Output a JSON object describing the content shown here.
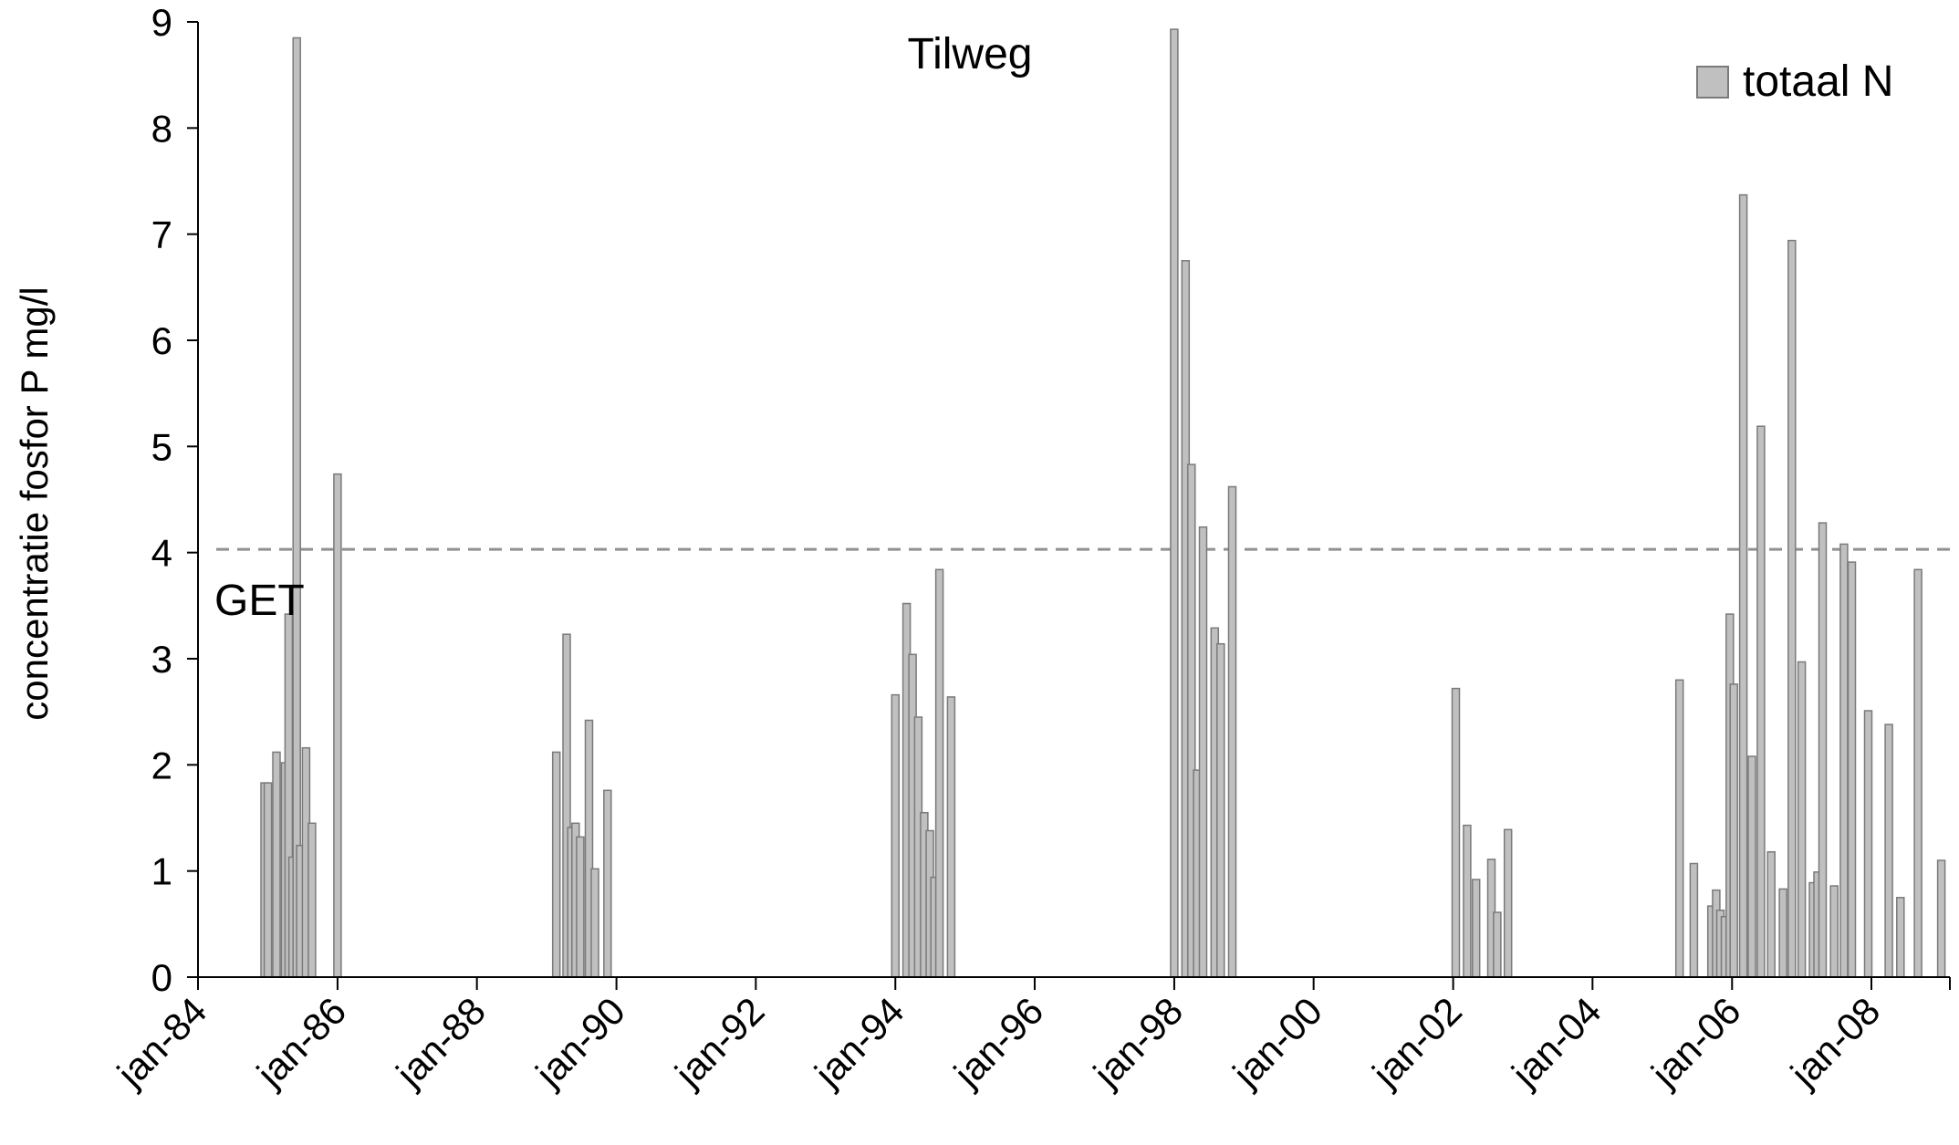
{
  "chart_data": {
    "type": "bar",
    "title": "Tilweg",
    "ylabel": "concentratie fosfor P mg/l",
    "xlabel": "",
    "ylim": [
      0,
      9
    ],
    "yticks": [
      "0",
      "1",
      "2",
      "3",
      "4",
      "5",
      "6",
      "7",
      "8",
      "9"
    ],
    "xlim": [
      "1984-01-01",
      "2009-02-15"
    ],
    "xticks": [
      {
        "date": "1984-01-01",
        "label": "jan-84"
      },
      {
        "date": "1986-01-01",
        "label": "jan-86"
      },
      {
        "date": "1988-01-01",
        "label": "jan-88"
      },
      {
        "date": "1990-01-01",
        "label": "jan-90"
      },
      {
        "date": "1992-01-01",
        "label": "jan-92"
      },
      {
        "date": "1994-01-01",
        "label": "jan-94"
      },
      {
        "date": "1996-01-01",
        "label": "jan-96"
      },
      {
        "date": "1998-01-01",
        "label": "jan-98"
      },
      {
        "date": "2000-01-01",
        "label": "jan-00"
      },
      {
        "date": "2002-01-01",
        "label": "jan-02"
      },
      {
        "date": "2004-01-01",
        "label": "jan-04"
      },
      {
        "date": "2006-01-01",
        "label": "jan-06"
      },
      {
        "date": "2008-01-01",
        "label": "jan-08"
      }
    ],
    "legend": {
      "label": "totaal N",
      "placement": "top-right"
    },
    "reference_line": {
      "label": "GET",
      "value": 4.03
    },
    "colors": {
      "bar_fill": "#c0c0c0",
      "bar_stroke": "#7a7a7a",
      "reference": "#909090",
      "reference_label": "#c0c0c0"
    },
    "series": [
      {
        "name": "totaal N",
        "points": [
          {
            "x": "1984-12-15",
            "y": 1.83
          },
          {
            "x": "1985-01-01",
            "y": 1.83
          },
          {
            "x": "1985-02-15",
            "y": 2.12
          },
          {
            "x": "1985-04-01",
            "y": 2.02
          },
          {
            "x": "1985-04-20",
            "y": 3.42
          },
          {
            "x": "1985-05-10",
            "y": 1.13
          },
          {
            "x": "1985-06-01",
            "y": 8.85
          },
          {
            "x": "1985-06-20",
            "y": 1.24
          },
          {
            "x": "1985-07-20",
            "y": 2.16
          },
          {
            "x": "1985-08-20",
            "y": 1.45
          },
          {
            "x": "1986-01-01",
            "y": 4.74
          },
          {
            "x": "1989-02-20",
            "y": 2.12
          },
          {
            "x": "1989-04-15",
            "y": 3.23
          },
          {
            "x": "1989-05-10",
            "y": 1.41
          },
          {
            "x": "1989-06-01",
            "y": 1.45
          },
          {
            "x": "1989-06-25",
            "y": 1.32
          },
          {
            "x": "1989-08-10",
            "y": 2.42
          },
          {
            "x": "1989-09-10",
            "y": 1.02
          },
          {
            "x": "1989-11-15",
            "y": 1.76
          },
          {
            "x": "1994-01-01",
            "y": 2.66
          },
          {
            "x": "1994-03-01",
            "y": 3.52
          },
          {
            "x": "1994-04-01",
            "y": 3.04
          },
          {
            "x": "1994-05-01",
            "y": 2.45
          },
          {
            "x": "1994-06-01",
            "y": 1.55
          },
          {
            "x": "1994-07-01",
            "y": 1.38
          },
          {
            "x": "1994-07-25",
            "y": 0.94
          },
          {
            "x": "1994-08-20",
            "y": 3.84
          },
          {
            "x": "1994-10-20",
            "y": 2.64
          },
          {
            "x": "1998-01-01",
            "y": 8.93
          },
          {
            "x": "1998-03-01",
            "y": 6.75
          },
          {
            "x": "1998-04-01",
            "y": 4.83
          },
          {
            "x": "1998-05-01",
            "y": 1.95
          },
          {
            "x": "1998-06-01",
            "y": 4.24
          },
          {
            "x": "1998-08-01",
            "y": 3.29
          },
          {
            "x": "1998-09-01",
            "y": 3.14
          },
          {
            "x": "1998-11-01",
            "y": 4.62
          },
          {
            "x": "2002-01-15",
            "y": 2.72
          },
          {
            "x": "2002-03-15",
            "y": 1.43
          },
          {
            "x": "2002-05-01",
            "y": 0.92
          },
          {
            "x": "2002-07-20",
            "y": 1.11
          },
          {
            "x": "2002-08-20",
            "y": 0.61
          },
          {
            "x": "2002-10-15",
            "y": 1.39
          },
          {
            "x": "2005-04-01",
            "y": 2.8
          },
          {
            "x": "2005-06-15",
            "y": 1.07
          },
          {
            "x": "2005-09-15",
            "y": 0.67
          },
          {
            "x": "2005-10-10",
            "y": 0.82
          },
          {
            "x": "2005-11-01",
            "y": 0.63
          },
          {
            "x": "2005-11-25",
            "y": 0.57
          },
          {
            "x": "2005-12-20",
            "y": 3.42
          },
          {
            "x": "2006-01-10",
            "y": 2.76
          },
          {
            "x": "2006-03-01",
            "y": 7.37
          },
          {
            "x": "2006-04-15",
            "y": 2.08
          },
          {
            "x": "2006-06-01",
            "y": 5.19
          },
          {
            "x": "2006-07-25",
            "y": 1.18
          },
          {
            "x": "2006-09-25",
            "y": 0.83
          },
          {
            "x": "2006-11-10",
            "y": 6.94
          },
          {
            "x": "2007-01-01",
            "y": 2.97
          },
          {
            "x": "2007-03-01",
            "y": 0.89
          },
          {
            "x": "2007-03-25",
            "y": 0.99
          },
          {
            "x": "2007-04-20",
            "y": 4.28
          },
          {
            "x": "2007-06-20",
            "y": 0.86
          },
          {
            "x": "2007-08-10",
            "y": 4.08
          },
          {
            "x": "2007-09-20",
            "y": 3.91
          },
          {
            "x": "2007-12-15",
            "y": 2.51
          },
          {
            "x": "2008-04-01",
            "y": 2.38
          },
          {
            "x": "2008-06-01",
            "y": 0.75
          },
          {
            "x": "2008-09-01",
            "y": 3.84
          },
          {
            "x": "2009-01-01",
            "y": 1.1
          }
        ]
      }
    ]
  }
}
